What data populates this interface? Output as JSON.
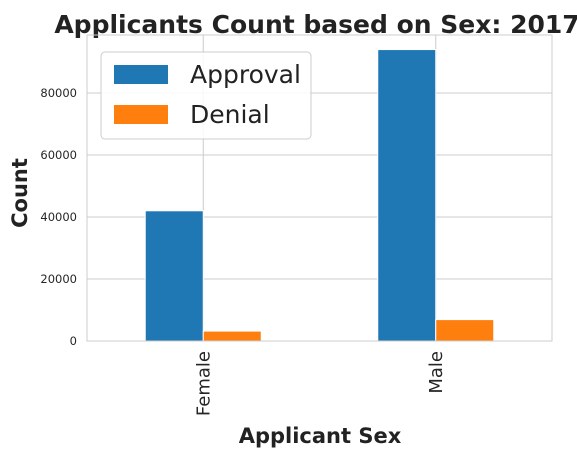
{
  "chart_data": {
    "type": "bar",
    "title": "Applicants Count based on Sex: 2017",
    "xlabel": "Applicant Sex",
    "ylabel": "Count",
    "categories": [
      "Female",
      "Male"
    ],
    "series": [
      {
        "name": "Approval",
        "values": [
          42000,
          94000
        ],
        "color": "#1f77b4"
      },
      {
        "name": "Denial",
        "values": [
          3200,
          6900
        ],
        "color": "#ff7f0e"
      }
    ],
    "ylim": [
      0,
      98700
    ],
    "yticks": [
      0,
      20000,
      40000,
      60000,
      80000
    ],
    "ytick_labels": [
      "0",
      "20000",
      "40000",
      "60000",
      "80000"
    ],
    "grid": true,
    "legend_position": "top-left"
  }
}
